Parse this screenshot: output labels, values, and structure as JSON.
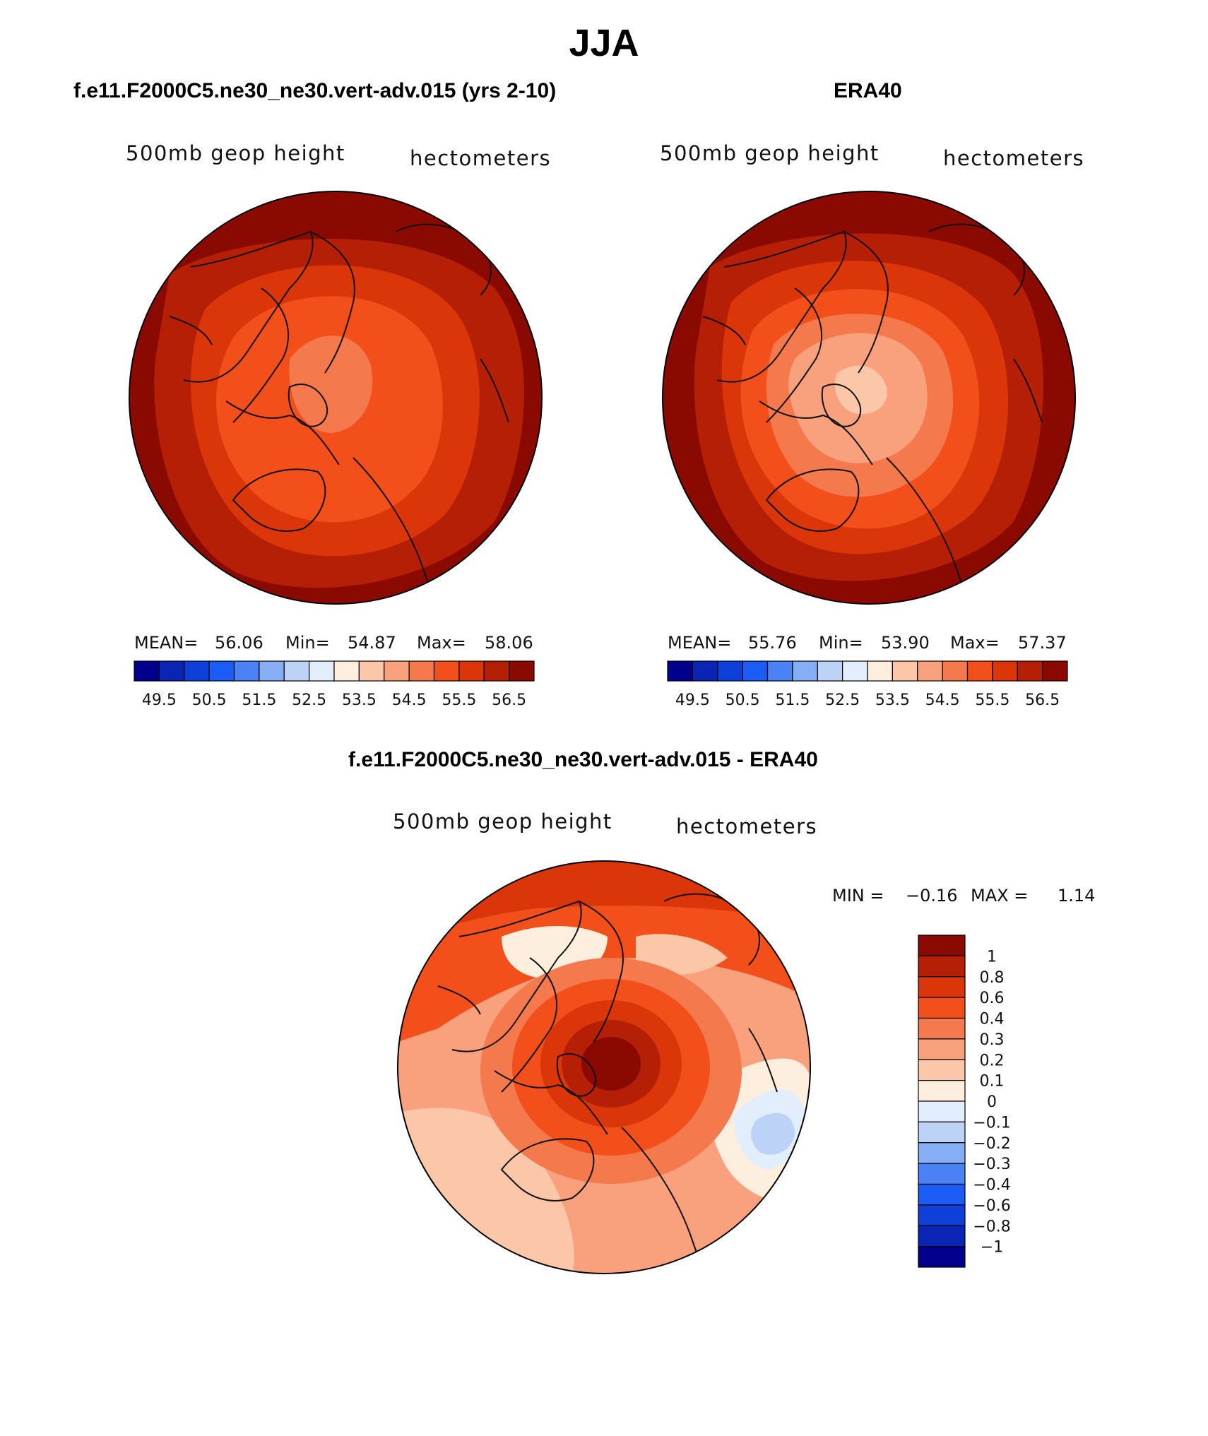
{
  "title": "JJA",
  "panels": [
    {
      "title": "f.e11.F2000C5.ne30_ne30.vert-adv.015 (yrs 2-10)",
      "left_label": "500mb geop height",
      "right_label": "hectometers",
      "stats": {
        "mean_label": "MEAN=",
        "mean": "56.06",
        "min_label": "Min=",
        "min": "54.87",
        "max_label": "Max=",
        "max": "58.06"
      }
    },
    {
      "title": "ERA40",
      "left_label": "500mb geop height",
      "right_label": "hectometers",
      "stats": {
        "mean_label": "MEAN=",
        "mean": "55.76",
        "min_label": "Min=",
        "min": "53.90",
        "max_label": "Max=",
        "max": "57.37"
      }
    },
    {
      "title": "f.e11.F2000C5.ne30_ne30.vert-adv.015 - ERA40",
      "left_label": "500mb geop height",
      "right_label": "hectometers",
      "stats": {
        "min_label": "MIN =",
        "min": "−0.16",
        "max_label": "MAX =",
        "max": "1.14"
      }
    }
  ],
  "colorbar_abs": {
    "colors": [
      "#00008c",
      "#0a24b4",
      "#0e3fd8",
      "#1a5cf5",
      "#4a82f5",
      "#86aef5",
      "#bcd2f7",
      "#e2eefb",
      "#fdeede",
      "#fcc7a8",
      "#f9a07d",
      "#f47a4e",
      "#f24f1b",
      "#da360a",
      "#b51f05",
      "#8a0a02"
    ],
    "labels": [
      "49.5",
      "50.5",
      "51.5",
      "52.5",
      "53.5",
      "54.5",
      "55.5",
      "56.5"
    ]
  },
  "colorbar_diff": {
    "colors": [
      "#8a0a02",
      "#b51f05",
      "#da360a",
      "#f24f1b",
      "#f47a4e",
      "#f9a07d",
      "#fcc7a8",
      "#fdeede",
      "#e2eefb",
      "#bcd2f7",
      "#86aef5",
      "#4a82f5",
      "#1a5cf5",
      "#0e3fd8",
      "#0a24b4",
      "#00008c"
    ],
    "labels": [
      "1",
      "0.8",
      "0.6",
      "0.4",
      "0.3",
      "0.2",
      "0.1",
      "0",
      "−0.1",
      "−0.2",
      "−0.3",
      "−0.4",
      "−0.6",
      "−0.8",
      "−1"
    ]
  }
}
